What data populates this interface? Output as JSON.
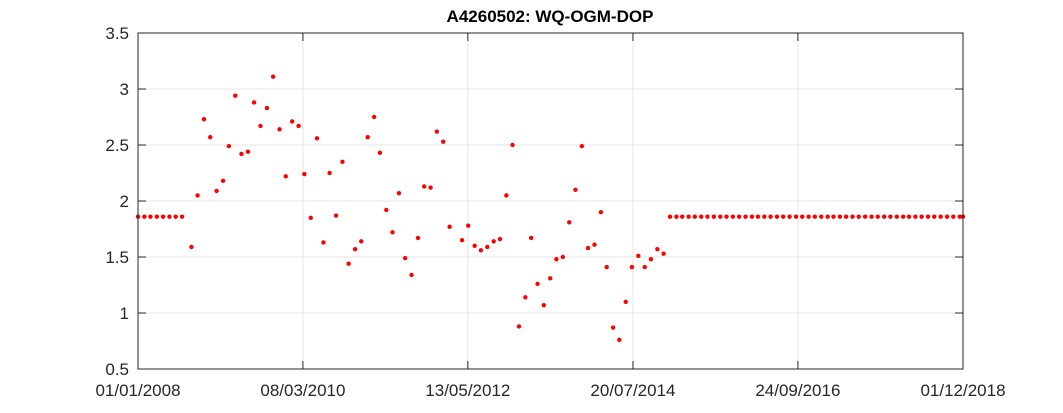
{
  "chart_data": {
    "type": "scatter",
    "title": "A4260502: WQ-OGM-DOP",
    "xlabel": "",
    "ylabel": "",
    "xlim": [
      "01/01/2008",
      "01/12/2018"
    ],
    "ylim": [
      0.5,
      3.5
    ],
    "x_ticks": [
      "01/01/2008",
      "08/03/2010",
      "13/05/2012",
      "20/07/2014",
      "24/09/2016",
      "01/12/2018"
    ],
    "y_ticks": [
      "0.5",
      "1",
      "1.5",
      "2",
      "2.5",
      "3",
      "3.5"
    ],
    "grid": true,
    "marker_color": "#ff0000",
    "series": [
      {
        "x": [
          "01/01/2008",
          "01/02/2008",
          "01/03/2008",
          "01/04/2008",
          "01/05/2008",
          "01/06/2008",
          "01/07/2008",
          "01/08/2008",
          "15/09/2008",
          "15/10/2008",
          "15/11/2008",
          "15/12/2008",
          "15/01/2009",
          "15/02/2009",
          "15/03/2009",
          "15/04/2009",
          "15/05/2009",
          "15/06/2009",
          "15/07/2009",
          "15/08/2009",
          "15/09/2009",
          "15/10/2009",
          "15/11/2009",
          "15/12/2009",
          "15/01/2010",
          "15/02/2010",
          "15/03/2010",
          "15/04/2010",
          "15/05/2010",
          "15/06/2010",
          "15/07/2010",
          "15/08/2010",
          "15/09/2010",
          "15/10/2010",
          "15/11/2010",
          "15/12/2010",
          "15/01/2011",
          "15/02/2011",
          "15/03/2011",
          "15/04/2011",
          "15/05/2011",
          "15/06/2011",
          "15/07/2011",
          "15/08/2011",
          "15/09/2011",
          "15/10/2011",
          "15/11/2011",
          "15/12/2011",
          "15/01/2012",
          "15/02/2012",
          "15/04/2012",
          "15/05/2012",
          "15/06/2012",
          "15/07/2012",
          "15/08/2012",
          "15/09/2012",
          "15/10/2012",
          "15/11/2012",
          "15/12/2012",
          "15/01/2013",
          "15/02/2013",
          "15/03/2013",
          "15/04/2013",
          "15/05/2013",
          "15/06/2013",
          "15/07/2013",
          "15/08/2013",
          "15/09/2013",
          "15/10/2013",
          "15/11/2013",
          "15/12/2013",
          "15/01/2014",
          "15/02/2014",
          "15/03/2014",
          "15/04/2014",
          "15/05/2014",
          "15/06/2014",
          "15/07/2014",
          "15/08/2014",
          "15/09/2014",
          "15/10/2014",
          "15/11/2014",
          "15/12/2014",
          "15/01/2015",
          "15/02/2015",
          "15/03/2015",
          "15/04/2015",
          "15/05/2015",
          "15/06/2015",
          "15/07/2015",
          "15/08/2015",
          "15/09/2015",
          "15/10/2015",
          "15/11/2015",
          "15/12/2015",
          "15/01/2016",
          "15/02/2016",
          "15/03/2016",
          "15/04/2016",
          "15/05/2016",
          "15/06/2016",
          "15/07/2016",
          "15/08/2016",
          "15/09/2016",
          "15/10/2016",
          "15/11/2016",
          "15/12/2016",
          "15/01/2017",
          "15/02/2017",
          "15/03/2017",
          "15/04/2017",
          "15/05/2017",
          "15/06/2017",
          "15/07/2017",
          "15/08/2017",
          "15/09/2017",
          "15/10/2017",
          "15/11/2017",
          "15/12/2017",
          "15/01/2018",
          "15/02/2018",
          "15/03/2018",
          "15/04/2018",
          "15/05/2018",
          "15/06/2018",
          "15/07/2018",
          "15/08/2018",
          "15/09/2018",
          "15/10/2018",
          "15/11/2018",
          "01/12/2018"
        ],
        "y": [
          1.86,
          1.86,
          1.86,
          1.86,
          1.86,
          1.86,
          1.86,
          1.86,
          1.59,
          2.05,
          2.73,
          2.57,
          2.09,
          2.18,
          2.49,
          2.94,
          2.42,
          2.44,
          2.88,
          2.67,
          2.83,
          3.11,
          2.64,
          2.22,
          2.71,
          2.67,
          2.24,
          1.85,
          2.56,
          1.63,
          2.25,
          1.87,
          2.35,
          1.44,
          1.57,
          1.64,
          2.57,
          2.75,
          2.43,
          1.92,
          1.72,
          2.07,
          1.49,
          1.34,
          1.67,
          2.13,
          2.12,
          2.62,
          2.53,
          1.77,
          1.65,
          1.78,
          1.6,
          1.56,
          1.59,
          1.64,
          1.66,
          2.05,
          2.5,
          0.88,
          1.14,
          1.67,
          1.26,
          1.07,
          1.31,
          1.48,
          1.5,
          1.81,
          2.1,
          2.49,
          1.58,
          1.61,
          1.9,
          1.41,
          0.87,
          0.76,
          1.1,
          1.41,
          1.51,
          1.41,
          1.48,
          1.57,
          1.53,
          1.86,
          1.86,
          1.86,
          1.86,
          1.86,
          1.86,
          1.86,
          1.86,
          1.86,
          1.86,
          1.86,
          1.86,
          1.86,
          1.86,
          1.86,
          1.86,
          1.86,
          1.86,
          1.86,
          1.86,
          1.86,
          1.86,
          1.86,
          1.86,
          1.86,
          1.86,
          1.86,
          1.86,
          1.86,
          1.86,
          1.86,
          1.86,
          1.86,
          1.86,
          1.86,
          1.86,
          1.86,
          1.86,
          1.86,
          1.86,
          1.86,
          1.86,
          1.86,
          1.86,
          1.86,
          1.86,
          1.86,
          1.86
        ]
      }
    ]
  }
}
